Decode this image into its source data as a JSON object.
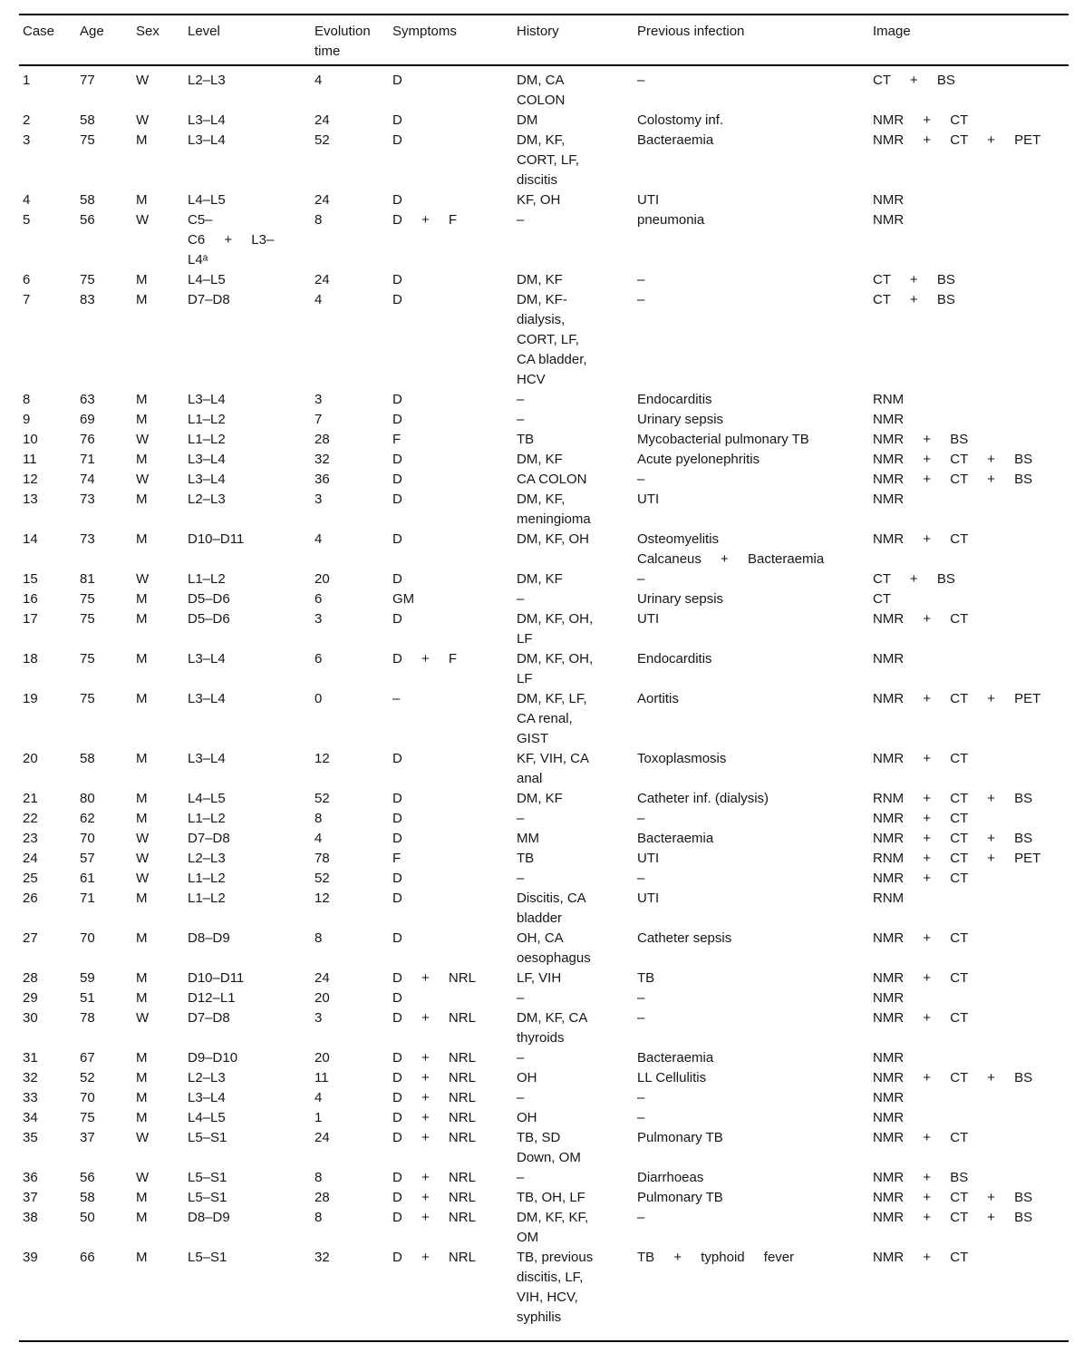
{
  "table": {
    "columns": [
      {
        "key": "case",
        "label": "Case"
      },
      {
        "key": "age",
        "label": "Age"
      },
      {
        "key": "sex",
        "label": "Sex"
      },
      {
        "key": "level",
        "label": "Level"
      },
      {
        "key": "evolution_time",
        "label": "Evolution\ntime"
      },
      {
        "key": "symptoms",
        "label": "Symptoms"
      },
      {
        "key": "history",
        "label": "History"
      },
      {
        "key": "previous_infection",
        "label": "Previous infection"
      },
      {
        "key": "image",
        "label": "Image"
      }
    ],
    "rows": [
      {
        "case": "1",
        "age": "77",
        "sex": "W",
        "level": "L2–L3",
        "evolution_time": "4",
        "symptoms": "D",
        "history": "DM, CA\nCOLON",
        "previous_infection": "–",
        "image": "CT + BS"
      },
      {
        "case": "2",
        "age": "58",
        "sex": "W",
        "level": "L3–L4",
        "evolution_time": "24",
        "symptoms": "D",
        "history": "DM",
        "previous_infection": "Colostomy inf.",
        "image": "NMR + CT"
      },
      {
        "case": "3",
        "age": "75",
        "sex": "M",
        "level": "L3–L4",
        "evolution_time": "52",
        "symptoms": "D",
        "history": "DM, KF,\nCORT, LF,\ndiscitis",
        "previous_infection": "Bacteraemia",
        "image": "NMR + CT + PET"
      },
      {
        "case": "4",
        "age": "58",
        "sex": "M",
        "level": "L4–L5",
        "evolution_time": "24",
        "symptoms": "D",
        "history": "KF, OH",
        "previous_infection": "UTI",
        "image": "NMR"
      },
      {
        "case": "5",
        "age": "56",
        "sex": "W",
        "level": "C5–\nC6 + L3–\nL4ᵃ",
        "evolution_time": "8",
        "symptoms": "D + F",
        "history": "–",
        "previous_infection": "pneumonia",
        "image": "NMR"
      },
      {
        "case": "6",
        "age": "75",
        "sex": "M",
        "level": "L4–L5",
        "evolution_time": "24",
        "symptoms": "D",
        "history": "DM, KF",
        "previous_infection": "–",
        "image": "CT + BS"
      },
      {
        "case": "7",
        "age": "83",
        "sex": "M",
        "level": "D7–D8",
        "evolution_time": "4",
        "symptoms": "D",
        "history": "DM, KF-\ndialysis,\nCORT, LF,\nCA bladder,\nHCV",
        "previous_infection": "–",
        "image": "CT + BS"
      },
      {
        "case": "8",
        "age": "63",
        "sex": "M",
        "level": "L3–L4",
        "evolution_time": "3",
        "symptoms": "D",
        "history": "–",
        "previous_infection": "Endocarditis",
        "image": "RNM"
      },
      {
        "case": "9",
        "age": "69",
        "sex": "M",
        "level": "L1–L2",
        "evolution_time": "7",
        "symptoms": "D",
        "history": "–",
        "previous_infection": "Urinary sepsis",
        "image": "NMR"
      },
      {
        "case": "10",
        "age": "76",
        "sex": "W",
        "level": "L1–L2",
        "evolution_time": "28",
        "symptoms": "F",
        "history": "TB",
        "previous_infection": "Mycobacterial pulmonary TB",
        "image": "NMR + BS"
      },
      {
        "case": "11",
        "age": "71",
        "sex": "M",
        "level": "L3–L4",
        "evolution_time": "32",
        "symptoms": "D",
        "history": "DM, KF",
        "previous_infection": "Acute pyelonephritis",
        "image": "NMR + CT + BS"
      },
      {
        "case": "12",
        "age": "74",
        "sex": "W",
        "level": "L3–L4",
        "evolution_time": "36",
        "symptoms": "D",
        "history": "CA COLON",
        "previous_infection": "–",
        "image": "NMR + CT + BS"
      },
      {
        "case": "13",
        "age": "73",
        "sex": "M",
        "level": "L2–L3",
        "evolution_time": "3",
        "symptoms": "D",
        "history": "DM, KF,\nmeningioma",
        "previous_infection": "UTI",
        "image": "NMR"
      },
      {
        "case": "14",
        "age": "73",
        "sex": "M",
        "level": "D10–D11",
        "evolution_time": "4",
        "symptoms": "D",
        "history": "DM, KF, OH",
        "previous_infection": "Osteomyelitis\nCalcaneus + Bacteraemia",
        "image": "NMR + CT"
      },
      {
        "case": "15",
        "age": "81",
        "sex": "W",
        "level": "L1–L2",
        "evolution_time": "20",
        "symptoms": "D",
        "history": "DM, KF",
        "previous_infection": "–",
        "image": "CT + BS"
      },
      {
        "case": "16",
        "age": "75",
        "sex": "M",
        "level": "D5–D6",
        "evolution_time": "6",
        "symptoms": "GM",
        "history": "–",
        "previous_infection": "Urinary sepsis",
        "image": "CT"
      },
      {
        "case": "17",
        "age": "75",
        "sex": "M",
        "level": "D5–D6",
        "evolution_time": "3",
        "symptoms": "D",
        "history": "DM, KF, OH,\nLF",
        "previous_infection": "UTI",
        "image": "NMR + CT"
      },
      {
        "case": "18",
        "age": "75",
        "sex": "M",
        "level": "L3–L4",
        "evolution_time": "6",
        "symptoms": "D + F",
        "history": "DM, KF, OH,\nLF",
        "previous_infection": "Endocarditis",
        "image": "NMR"
      },
      {
        "case": "19",
        "age": "75",
        "sex": "M",
        "level": "L3–L4",
        "evolution_time": "0",
        "symptoms": "–",
        "history": "DM, KF, LF,\nCA renal,\nGIST",
        "previous_infection": "Aortitis",
        "image": "NMR + CT + PET"
      },
      {
        "case": "20",
        "age": "58",
        "sex": "M",
        "level": "L3–L4",
        "evolution_time": "12",
        "symptoms": "D",
        "history": "KF, VIH, CA\nanal",
        "previous_infection": "Toxoplasmosis",
        "image": "NMR + CT"
      },
      {
        "case": "21",
        "age": "80",
        "sex": "M",
        "level": "L4–L5",
        "evolution_time": "52",
        "symptoms": "D",
        "history": "DM, KF",
        "previous_infection": "Catheter inf. (dialysis)",
        "image": "RNM + CT + BS"
      },
      {
        "case": "22",
        "age": "62",
        "sex": "M",
        "level": "L1–L2",
        "evolution_time": "8",
        "symptoms": "D",
        "history": "–",
        "previous_infection": "–",
        "image": "NMR + CT"
      },
      {
        "case": "23",
        "age": "70",
        "sex": "W",
        "level": "D7–D8",
        "evolution_time": "4",
        "symptoms": "D",
        "history": "MM",
        "previous_infection": "Bacteraemia",
        "image": "NMR + CT + BS"
      },
      {
        "case": "24",
        "age": "57",
        "sex": "W",
        "level": "L2–L3",
        "evolution_time": "78",
        "symptoms": "F",
        "history": "TB",
        "previous_infection": "UTI",
        "image": "RNM + CT + PET"
      },
      {
        "case": "25",
        "age": "61",
        "sex": "W",
        "level": "L1–L2",
        "evolution_time": "52",
        "symptoms": "D",
        "history": "–",
        "previous_infection": "–",
        "image": "NMR + CT"
      },
      {
        "case": "26",
        "age": "71",
        "sex": "M",
        "level": "L1–L2",
        "evolution_time": "12",
        "symptoms": "D",
        "history": "Discitis, CA\nbladder",
        "previous_infection": "UTI",
        "image": "RNM"
      },
      {
        "case": "27",
        "age": "70",
        "sex": "M",
        "level": "D8–D9",
        "evolution_time": "8",
        "symptoms": "D",
        "history": "OH, CA\noesophagus",
        "previous_infection": "Catheter sepsis",
        "image": "NMR + CT"
      },
      {
        "case": "28",
        "age": "59",
        "sex": "M",
        "level": "D10–D11",
        "evolution_time": "24",
        "symptoms": "D + NRL",
        "history": "LF, VIH",
        "previous_infection": "TB",
        "image": "NMR + CT"
      },
      {
        "case": "29",
        "age": "51",
        "sex": "M",
        "level": "D12–L1",
        "evolution_time": "20",
        "symptoms": "D",
        "history": "–",
        "previous_infection": "–",
        "image": "NMR"
      },
      {
        "case": "30",
        "age": "78",
        "sex": "W",
        "level": "D7–D8",
        "evolution_time": "3",
        "symptoms": "D + NRL",
        "history": "DM, KF, CA\nthyroids",
        "previous_infection": "–",
        "image": "NMR + CT"
      },
      {
        "case": "31",
        "age": "67",
        "sex": "M",
        "level": "D9–D10",
        "evolution_time": "20",
        "symptoms": "D + NRL",
        "history": "–",
        "previous_infection": "Bacteraemia",
        "image": "NMR"
      },
      {
        "case": "32",
        "age": "52",
        "sex": "M",
        "level": "L2–L3",
        "evolution_time": "11",
        "symptoms": "D + NRL",
        "history": "OH",
        "previous_infection": "LL Cellulitis",
        "image": "NMR + CT + BS"
      },
      {
        "case": "33",
        "age": "70",
        "sex": "M",
        "level": "L3–L4",
        "evolution_time": "4",
        "symptoms": "D + NRL",
        "history": "–",
        "previous_infection": "–",
        "image": "NMR"
      },
      {
        "case": "34",
        "age": "75",
        "sex": "M",
        "level": "L4–L5",
        "evolution_time": "1",
        "symptoms": "D + NRL",
        "history": "OH",
        "previous_infection": "–",
        "image": "NMR"
      },
      {
        "case": "35",
        "age": "37",
        "sex": "W",
        "level": "L5–S1",
        "evolution_time": "24",
        "symptoms": "D + NRL",
        "history": "TB, SD\nDown, OM",
        "previous_infection": "Pulmonary TB",
        "image": "NMR + CT"
      },
      {
        "case": "36",
        "age": "56",
        "sex": "W",
        "level": "L5–S1",
        "evolution_time": "8",
        "symptoms": "D + NRL",
        "history": "–",
        "previous_infection": "Diarrhoeas",
        "image": "NMR + BS"
      },
      {
        "case": "37",
        "age": "58",
        "sex": "M",
        "level": "L5–S1",
        "evolution_time": "28",
        "symptoms": "D + NRL",
        "history": "TB, OH, LF",
        "previous_infection": "Pulmonary TB",
        "image": "NMR + CT + BS"
      },
      {
        "case": "38",
        "age": "50",
        "sex": "M",
        "level": "D8–D9",
        "evolution_time": "8",
        "symptoms": "D + NRL",
        "history": "DM, KF, KF,\nOM",
        "previous_infection": "–",
        "image": "NMR + CT + BS"
      },
      {
        "case": "39",
        "age": "66",
        "sex": "M",
        "level": "L5–S1",
        "evolution_time": "32",
        "symptoms": "D + NRL",
        "history": "TB, previous\ndiscitis, LF,\nVIH, HCV,\nsyphilis",
        "previous_infection": "TB + typhoid fever",
        "image": "NMR + CT"
      }
    ]
  }
}
